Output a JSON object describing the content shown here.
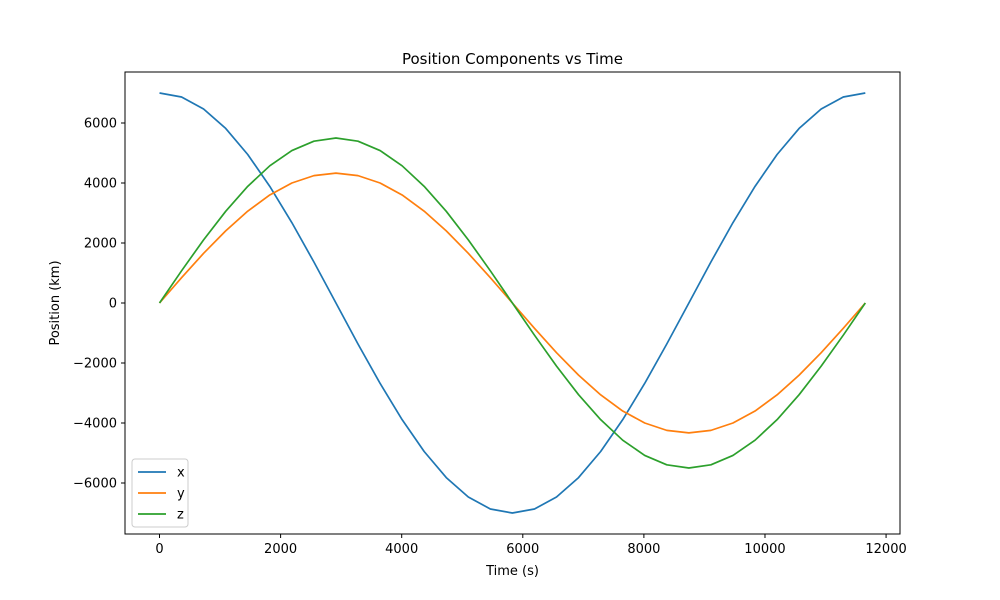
{
  "chart_data": {
    "type": "line",
    "title": "Position Components vs Time",
    "xlabel": "Time (s)",
    "ylabel": "Position (km)",
    "xlim": [
      -570,
      12230
    ],
    "ylim": [
      -7700,
      7700
    ],
    "xticks": [
      0,
      2000,
      4000,
      6000,
      8000,
      10000,
      12000
    ],
    "xtick_labels": [
      "0",
      "2000",
      "4000",
      "6000",
      "8000",
      "10000",
      "12000"
    ],
    "yticks": [
      -6000,
      -4000,
      -2000,
      0,
      2000,
      4000,
      6000
    ],
    "ytick_labels": [
      "−6000",
      "−4000",
      "−2000",
      "0",
      "2000",
      "4000",
      "6000"
    ],
    "grid": false,
    "legend_position": "lower-left",
    "x": [
      0,
      364,
      728,
      1093,
      1457,
      1821,
      2186,
      2550,
      2914,
      3278,
      3643,
      4007,
      4371,
      4736,
      5100,
      5464,
      5828,
      6193,
      6557,
      6921,
      7286,
      7650,
      8014,
      8378,
      8743,
      9107,
      9471,
      9836,
      10200,
      10564,
      10928,
      11293,
      11657
    ],
    "series": [
      {
        "name": "x",
        "color": "#1f77b4",
        "values": [
          7000,
          6866,
          6467,
          5820,
          4950,
          3889,
          2679,
          1366,
          0,
          -1366,
          -2679,
          -3889,
          -4950,
          -5820,
          -6467,
          -6866,
          -7000,
          -6866,
          -6467,
          -5820,
          -4950,
          -3889,
          -2679,
          -1366,
          0,
          1366,
          2679,
          3889,
          4950,
          5820,
          6467,
          6866,
          7000
        ]
      },
      {
        "name": "y",
        "color": "#ff7f0e",
        "values": [
          0,
          844,
          1656,
          2405,
          3062,
          3601,
          4000,
          4246,
          4330,
          4246,
          4000,
          3601,
          3062,
          2405,
          1656,
          844,
          0,
          -844,
          -1656,
          -2405,
          -3062,
          -3601,
          -4000,
          -4246,
          -4330,
          -4246,
          -4000,
          -3601,
          -3062,
          -2405,
          -1656,
          -844,
          0
        ]
      },
      {
        "name": "z",
        "color": "#2ca02c",
        "values": [
          0,
          1073,
          2105,
          3056,
          3889,
          4573,
          5081,
          5394,
          5500,
          5394,
          5081,
          4573,
          3889,
          3056,
          2105,
          1073,
          0,
          -1073,
          -2105,
          -3056,
          -3889,
          -4573,
          -5081,
          -5394,
          -5500,
          -5394,
          -5081,
          -4573,
          -3889,
          -3056,
          -2105,
          -1073,
          0
        ]
      }
    ]
  }
}
